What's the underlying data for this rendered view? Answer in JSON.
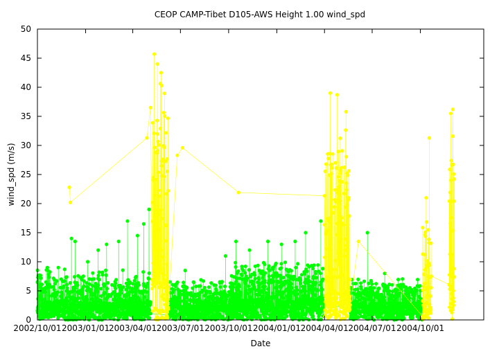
{
  "chart_data": {
    "type": "scatter",
    "title": "CEOP CAMP-Tibet D105-AWS Height 1.00 wind_spd",
    "xlabel": "Date",
    "ylabel": "wind_spd (m/s)",
    "xlim": [
      "2002-10-01",
      "2005-01-30"
    ],
    "ylim": [
      0,
      50
    ],
    "y_ticks": [
      0,
      5,
      10,
      15,
      20,
      25,
      30,
      35,
      40,
      45,
      50
    ],
    "x_ticks": [
      "2002/10/01",
      "2003/01/01",
      "2003/04/01",
      "2003/07/01",
      "2003/10/01",
      "2004/01/01",
      "2004/04/01",
      "2004/07/01",
      "2004/10/01"
    ],
    "grid": false,
    "legend": "none",
    "series": [
      {
        "color": "#00ff00",
        "segments": [
          {
            "start": "2002-10-01",
            "end": "2003-05-05",
            "base": 3.0,
            "spread": 6.0
          },
          {
            "start": "2003-06-10",
            "end": "2003-10-05",
            "base": 2.5,
            "spread": 4.5
          },
          {
            "start": "2003-10-05",
            "end": "2004-03-31",
            "base": 3.5,
            "spread": 7.0
          },
          {
            "start": "2004-05-20",
            "end": "2004-10-05",
            "base": 3.0,
            "spread": 4.5
          }
        ],
        "peaks": [
          {
            "x": "2002-10-01",
            "y": 6.5
          },
          {
            "x": "2002-10-20",
            "y": 9.0
          },
          {
            "x": "2002-11-10",
            "y": 9.0
          },
          {
            "x": "2002-12-05",
            "y": 14.0
          },
          {
            "x": "2002-12-12",
            "y": 13.5
          },
          {
            "x": "2003-01-05",
            "y": 10.0
          },
          {
            "x": "2003-01-25",
            "y": 12.0
          },
          {
            "x": "2003-02-10",
            "y": 13.0
          },
          {
            "x": "2003-03-05",
            "y": 13.5
          },
          {
            "x": "2003-03-22",
            "y": 17.0
          },
          {
            "x": "2003-04-10",
            "y": 14.5
          },
          {
            "x": "2003-04-22",
            "y": 16.5
          },
          {
            "x": "2003-05-02",
            "y": 19.0
          },
          {
            "x": "2003-07-10",
            "y": 8.5
          },
          {
            "x": "2003-09-25",
            "y": 11.0
          },
          {
            "x": "2003-10-15",
            "y": 13.5
          },
          {
            "x": "2003-11-10",
            "y": 12.0
          },
          {
            "x": "2003-12-15",
            "y": 13.5
          },
          {
            "x": "2004-01-10",
            "y": 13.0
          },
          {
            "x": "2004-02-05",
            "y": 13.5
          },
          {
            "x": "2004-02-25",
            "y": 15.0
          },
          {
            "x": "2004-03-25",
            "y": 17.0
          },
          {
            "x": "2004-06-22",
            "y": 15.0
          },
          {
            "x": "2004-07-25",
            "y": 8.0
          }
        ]
      },
      {
        "color": "#ffff00",
        "segments": [
          {
            "start": "2003-05-08",
            "end": "2003-06-08",
            "base": 10.0,
            "spread": 32.0
          },
          {
            "start": "2004-04-01",
            "end": "2004-05-20",
            "base": 5.0,
            "spread": 28.0
          },
          {
            "start": "2004-10-05",
            "end": "2004-10-22",
            "base": 3.0,
            "spread": 15.0
          },
          {
            "start": "2004-11-25",
            "end": "2004-12-05",
            "base": 8.0,
            "spread": 25.0
          }
        ],
        "peaks": [
          {
            "x": "2002-12-01",
            "y": 22.8
          },
          {
            "x": "2002-12-03",
            "y": 20.2
          },
          {
            "x": "2003-04-28",
            "y": 31.3
          },
          {
            "x": "2003-05-05",
            "y": 36.5
          },
          {
            "x": "2003-05-12",
            "y": 45.7
          },
          {
            "x": "2003-05-18",
            "y": 44.0
          },
          {
            "x": "2003-05-25",
            "y": 42.5
          },
          {
            "x": "2003-06-25",
            "y": 28.3
          },
          {
            "x": "2003-07-05",
            "y": 29.6
          },
          {
            "x": "2003-10-20",
            "y": 21.9
          },
          {
            "x": "2004-04-12",
            "y": 39.0
          },
          {
            "x": "2004-04-25",
            "y": 38.7
          },
          {
            "x": "2004-05-12",
            "y": 35.8
          },
          {
            "x": "2004-06-05",
            "y": 13.5
          },
          {
            "x": "2004-10-12",
            "y": 21.0
          },
          {
            "x": "2004-10-18",
            "y": 31.3
          },
          {
            "x": "2004-11-28",
            "y": 35.5
          },
          {
            "x": "2004-12-02",
            "y": 36.2
          }
        ]
      }
    ]
  }
}
